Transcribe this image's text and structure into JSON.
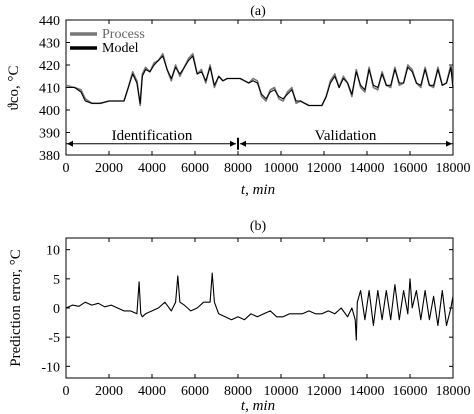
{
  "chart_data": [
    {
      "type": "line",
      "panel_label": "(a)",
      "xlabel": "t, min",
      "ylabel": "ϑco, °C",
      "xlim": [
        0,
        18000
      ],
      "ylim": [
        380,
        440
      ],
      "xticks": [
        0,
        2000,
        4000,
        6000,
        8000,
        10000,
        12000,
        14000,
        16000,
        18000
      ],
      "yticks": [
        380,
        390,
        400,
        410,
        420,
        430,
        440
      ],
      "grid": false,
      "legend": "top-left",
      "annotations": [
        {
          "text": "Identification",
          "x_range": [
            0,
            8000
          ],
          "y": 385
        },
        {
          "text": "Validation",
          "x_range": [
            8000,
            18000
          ],
          "y": 385
        }
      ],
      "series": [
        {
          "name": "Process",
          "color": "#777777",
          "x": [
            0,
            400,
            700,
            900,
            1200,
            1600,
            2000,
            2400,
            2700,
            2900,
            3100,
            3300,
            3450,
            3550,
            3700,
            3900,
            4100,
            4300,
            4500,
            4700,
            4900,
            5100,
            5300,
            5500,
            5700,
            5900,
            6100,
            6300,
            6500,
            6700,
            6900,
            7100,
            7300,
            7500,
            7700,
            7900,
            8100,
            8300,
            8500,
            8700,
            8900,
            9100,
            9300,
            9500,
            9700,
            9900,
            10100,
            10300,
            10500,
            10700,
            10900,
            11100,
            11300,
            11500,
            11700,
            11900,
            12100,
            12300,
            12500,
            12700,
            12900,
            13100,
            13300,
            13500,
            13700,
            13900,
            14100,
            14300,
            14500,
            14700,
            14900,
            15100,
            15300,
            15500,
            15700,
            15900,
            16100,
            16300,
            16500,
            16700,
            16900,
            17100,
            17300,
            17500,
            17700,
            17900,
            18000
          ],
          "y": [
            411,
            410,
            409,
            405,
            403,
            403,
            404,
            404,
            404,
            410,
            417,
            413,
            402,
            416,
            419,
            417,
            421,
            422,
            425,
            418,
            413,
            420,
            415,
            419,
            423,
            425,
            416,
            418,
            412,
            420,
            410,
            415,
            413,
            414,
            414,
            414,
            414,
            413,
            412,
            414,
            413,
            406,
            404,
            409,
            410,
            405,
            404,
            408,
            410,
            403,
            404,
            403,
            402,
            402,
            402,
            402,
            406,
            413,
            416,
            410,
            415,
            412,
            406,
            418,
            410,
            408,
            419,
            410,
            409,
            417,
            411,
            410,
            419,
            411,
            412,
            420,
            418,
            412,
            410,
            419,
            411,
            410,
            419,
            411,
            412,
            420,
            410
          ]
        },
        {
          "name": "Model",
          "color": "#000000",
          "x": [
            0,
            400,
            700,
            900,
            1200,
            1600,
            2000,
            2400,
            2700,
            2900,
            3100,
            3300,
            3450,
            3550,
            3700,
            3900,
            4100,
            4300,
            4500,
            4700,
            4900,
            5100,
            5300,
            5500,
            5700,
            5900,
            6100,
            6300,
            6500,
            6700,
            6900,
            7100,
            7300,
            7500,
            7700,
            7900,
            8100,
            8300,
            8500,
            8700,
            8900,
            9100,
            9300,
            9500,
            9700,
            9900,
            10100,
            10300,
            10500,
            10700,
            10900,
            11100,
            11300,
            11500,
            11700,
            11900,
            12100,
            12300,
            12500,
            12700,
            12900,
            13100,
            13300,
            13500,
            13700,
            13900,
            14100,
            14300,
            14500,
            14700,
            14900,
            15100,
            15300,
            15500,
            15700,
            15900,
            16100,
            16300,
            16500,
            16700,
            16900,
            17100,
            17300,
            17500,
            17700,
            17900,
            18000
          ],
          "y": [
            410,
            410,
            408,
            404,
            403,
            403,
            404,
            404,
            404,
            410,
            416,
            412,
            403,
            415,
            418,
            417,
            420,
            422,
            424,
            418,
            414,
            419,
            416,
            419,
            422,
            424,
            416,
            417,
            413,
            419,
            411,
            415,
            413,
            414,
            414,
            414,
            414,
            413,
            412,
            413,
            412,
            407,
            405,
            408,
            409,
            406,
            405,
            407,
            409,
            404,
            404,
            403,
            402,
            402,
            402,
            402,
            406,
            412,
            415,
            410,
            414,
            412,
            407,
            417,
            411,
            409,
            418,
            411,
            410,
            416,
            411,
            411,
            418,
            412,
            412,
            419,
            417,
            412,
            411,
            418,
            411,
            411,
            418,
            411,
            412,
            419,
            410
          ]
        }
      ]
    },
    {
      "type": "line",
      "panel_label": "(b)",
      "xlabel": "t, min",
      "ylabel": "Prediction error, °C",
      "xlim": [
        0,
        18000
      ],
      "ylim": [
        -12,
        12
      ],
      "xticks": [
        0,
        2000,
        4000,
        6000,
        8000,
        10000,
        12000,
        14000,
        16000,
        18000
      ],
      "yticks": [
        -10,
        -5,
        0,
        5,
        10
      ],
      "grid": false,
      "series": [
        {
          "color": "#000000",
          "x": [
            0,
            300,
            600,
            900,
            1200,
            1500,
            1800,
            2100,
            2400,
            2700,
            3000,
            3300,
            3400,
            3480,
            3550,
            3700,
            4000,
            4300,
            4600,
            4900,
            5100,
            5200,
            5300,
            5500,
            5800,
            6100,
            6400,
            6700,
            6800,
            6900,
            7100,
            7400,
            7700,
            8000,
            8300,
            8600,
            8900,
            9200,
            9500,
            9800,
            10100,
            10400,
            10700,
            11000,
            11300,
            11600,
            11900,
            12200,
            12500,
            12800,
            13100,
            13300,
            13450,
            13500,
            13550,
            13700,
            13900,
            14100,
            14300,
            14500,
            14700,
            14900,
            15100,
            15300,
            15500,
            15700,
            15900,
            16000,
            16100,
            16300,
            16500,
            16700,
            16900,
            17100,
            17300,
            17500,
            17700,
            17900,
            18000
          ],
          "y": [
            0,
            0.5,
            0.3,
            1,
            0.5,
            0.8,
            0.2,
            0.5,
            0,
            -0.5,
            -0.5,
            -1,
            4.5,
            -1,
            -1.5,
            -1,
            -0.5,
            0,
            1,
            -0.5,
            1,
            5.5,
            1,
            0.5,
            -0.5,
            0,
            1,
            1,
            6,
            1,
            -1,
            -1.5,
            -2,
            -1.5,
            -2,
            -1,
            -1.5,
            -1,
            -0.5,
            -1.5,
            -1.5,
            -1,
            -1,
            -1,
            -0.5,
            -1,
            -1,
            -0.5,
            -1,
            0,
            -1.5,
            0,
            -2,
            -5.5,
            1,
            3,
            -2,
            3,
            -3,
            3,
            -2,
            3,
            -2,
            4,
            -2,
            3,
            -1,
            5,
            0,
            3,
            -2,
            3,
            -2,
            2,
            -3,
            3,
            -3,
            0,
            2
          ]
        }
      ]
    }
  ]
}
